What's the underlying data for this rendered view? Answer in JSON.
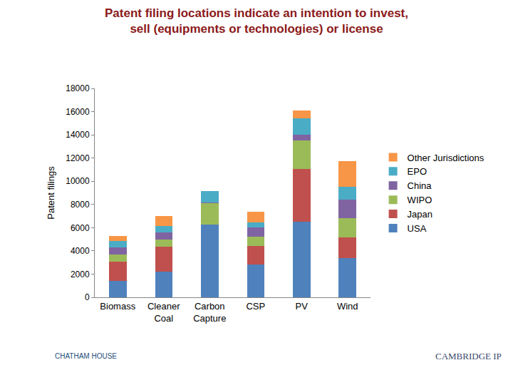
{
  "chart_data": {
    "type": "bar",
    "stacked": true,
    "title": "Patent filing locations indicate an intention to invest,\nsell (equipments or technologies) or license",
    "y_label": "Patent filings",
    "categories": [
      "Biomass",
      "Cleaner Coal",
      "Carbon Capture",
      "CSP",
      "PV",
      "Wind"
    ],
    "series": [
      {
        "name": "USA",
        "color": "#4F81BD",
        "values": [
          1400,
          2200,
          6250,
          2800,
          6500,
          3400
        ]
      },
      {
        "name": "Japan",
        "color": "#C0504D",
        "values": [
          1700,
          2150,
          0,
          1600,
          4550,
          1750
        ]
      },
      {
        "name": "WIPO",
        "color": "#9BBB59",
        "values": [
          600,
          650,
          1850,
          850,
          2450,
          1700
        ]
      },
      {
        "name": "China",
        "color": "#8064A2",
        "values": [
          600,
          600,
          50,
          750,
          500,
          1550
        ]
      },
      {
        "name": "EPO",
        "color": "#4BACC6",
        "values": [
          550,
          550,
          1000,
          450,
          1450,
          1150
        ]
      },
      {
        "name": "Other Jurisdictions",
        "color": "#F79646",
        "values": [
          450,
          850,
          0,
          900,
          650,
          2200
        ]
      }
    ],
    "ylim": [
      0,
      18000
    ],
    "yticks": [
      0,
      2000,
      4000,
      6000,
      8000,
      10000,
      12000,
      14000,
      16000,
      18000
    ],
    "grid": false,
    "legend": "right",
    "annotations": [
      "CHATHAM HOUSE",
      "CAMBRIDGE IP"
    ]
  }
}
